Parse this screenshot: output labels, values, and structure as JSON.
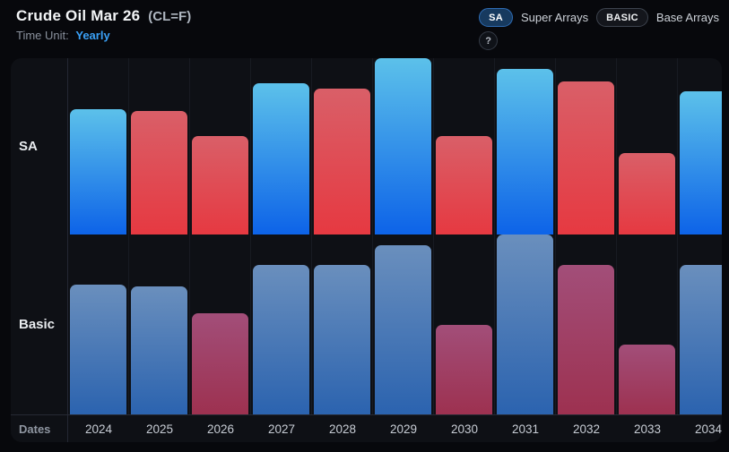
{
  "header": {
    "title": "Crude Oil Mar 26",
    "symbol": "(CL=F)",
    "time_unit_label": "Time Unit:",
    "time_unit_value": "Yearly"
  },
  "toggles": {
    "sa_badge": "SA",
    "sa_label": "Super Arrays",
    "basic_badge": "BASIC",
    "basic_label": "Base Arrays",
    "help": "?"
  },
  "chart_data": {
    "type": "bar",
    "orientation": "vertical",
    "title": "Crude Oil Mar 26 (CL=F) yearly arrays",
    "categories": [
      "2024",
      "2025",
      "2026",
      "2027",
      "2028",
      "2029",
      "2030",
      "2031",
      "2032",
      "2033",
      "2034"
    ],
    "axis_label": "Dates",
    "legend_position": "none",
    "grid": "vertical-only",
    "value_unit": "percent-of-row-height",
    "rows": [
      {
        "name": "SA",
        "height_pct": [
          71,
          70,
          56,
          86,
          83,
          100,
          56,
          94,
          87,
          46,
          81
        ],
        "direction": [
          "up",
          "down",
          "down",
          "up",
          "down",
          "up",
          "down",
          "up",
          "down",
          "down",
          "up"
        ]
      },
      {
        "name": "Basic",
        "height_pct": [
          72,
          71,
          56,
          83,
          83,
          94,
          50,
          100,
          83,
          39,
          83
        ],
        "direction": [
          "up",
          "up",
          "down",
          "up",
          "up",
          "up",
          "down",
          "up",
          "down",
          "down",
          "up"
        ]
      }
    ],
    "colors": {
      "sa_up_top": "#5cc1ea",
      "sa_up_bottom": "#0d63e8",
      "sa_down_top": "#d95f68",
      "sa_down_bottom": "#e63941",
      "basic_up_top": "#6a8fbd",
      "basic_up_bottom": "#2b63af",
      "basic_down_top": "#a24e79",
      "basic_down_bottom": "#9d3150"
    }
  },
  "theme": {
    "page_bg": "#07080c",
    "panel_bg": "#0e1015",
    "accent_blue": "#3aa0f6"
  }
}
